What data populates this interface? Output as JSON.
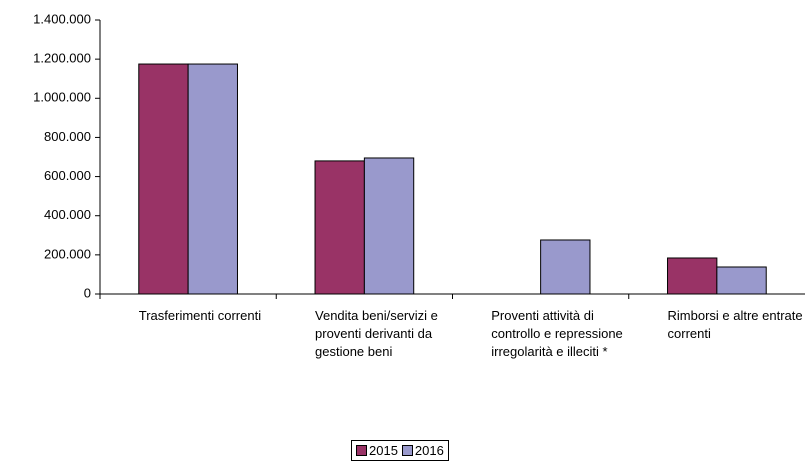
{
  "chart_data": {
    "type": "bar",
    "categories": [
      "Trasferimenti correnti",
      "Vendita beni/servizi e proventi derivanti da gestione beni",
      "Proventi attività di controllo e repressione irregolarità e illeciti *",
      "Rimborsi e altre entrate correnti"
    ],
    "series": [
      {
        "name": "2015",
        "color": "#993366",
        "values": [
          1175000,
          680000,
          0,
          184000
        ]
      },
      {
        "name": "2016",
        "color": "#9999cc",
        "values": [
          1175000,
          695000,
          276000,
          138000
        ]
      }
    ],
    "ylim": [
      0,
      1400000
    ],
    "yticks": [
      0,
      {
        "value": 200000,
        "label": "200.000"
      },
      {
        "value": 400000,
        "label": "400.000"
      },
      {
        "value": 600000,
        "label": "600.000"
      },
      {
        "value": 800000,
        "label": "800.000"
      },
      {
        "value": 1000000,
        "label": "1.000.000"
      },
      {
        "value": 1200000,
        "label": "1.200.000"
      },
      {
        "value": 1400000,
        "label": "1.400.000"
      }
    ],
    "grid": false,
    "legend": "bottom"
  }
}
